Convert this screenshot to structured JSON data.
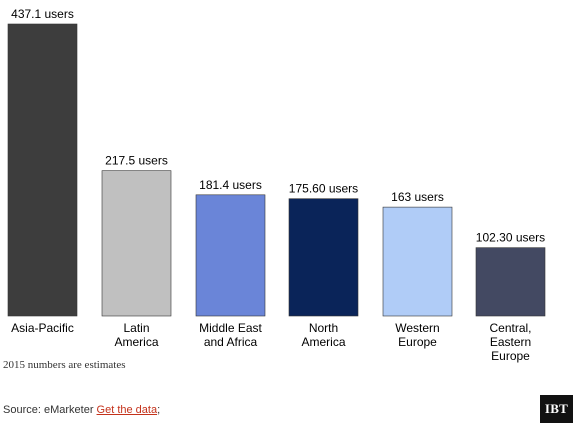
{
  "chart_data": {
    "type": "bar",
    "categories": [
      "Asia-Pacific",
      "Latin America",
      "Middle East and Africa",
      "North America",
      "Western Europe",
      "Central, Eastern Europe"
    ],
    "category_label_lines": [
      [
        "Asia-Pacific"
      ],
      [
        "Latin",
        "America"
      ],
      [
        "Middle East",
        "and Africa"
      ],
      [
        "North",
        "America"
      ],
      [
        "Western",
        "Europe"
      ],
      [
        "Central,",
        "Eastern",
        "Europe"
      ]
    ],
    "values": [
      437.1,
      217.5,
      181.4,
      175.6,
      163,
      102.3
    ],
    "value_labels": [
      "437.1 users",
      "217.5 users",
      "181.4 users",
      "175.60 users",
      "163 users",
      "102.30 users"
    ],
    "colors": [
      "#3d3d3d",
      "#c0c0c0",
      "#6a85d8",
      "#0a2459",
      "#b0ccf7",
      "#434962"
    ],
    "ylim": [
      0,
      437.1
    ],
    "grid": false,
    "title": "",
    "xlabel": "",
    "ylabel": ""
  },
  "footnote": "2015 numbers are estimates",
  "source": {
    "prefix": "Source: eMarketer ",
    "link_text": "Get the data",
    "suffix": ";"
  },
  "brand": {
    "logo_text": "IBT"
  }
}
